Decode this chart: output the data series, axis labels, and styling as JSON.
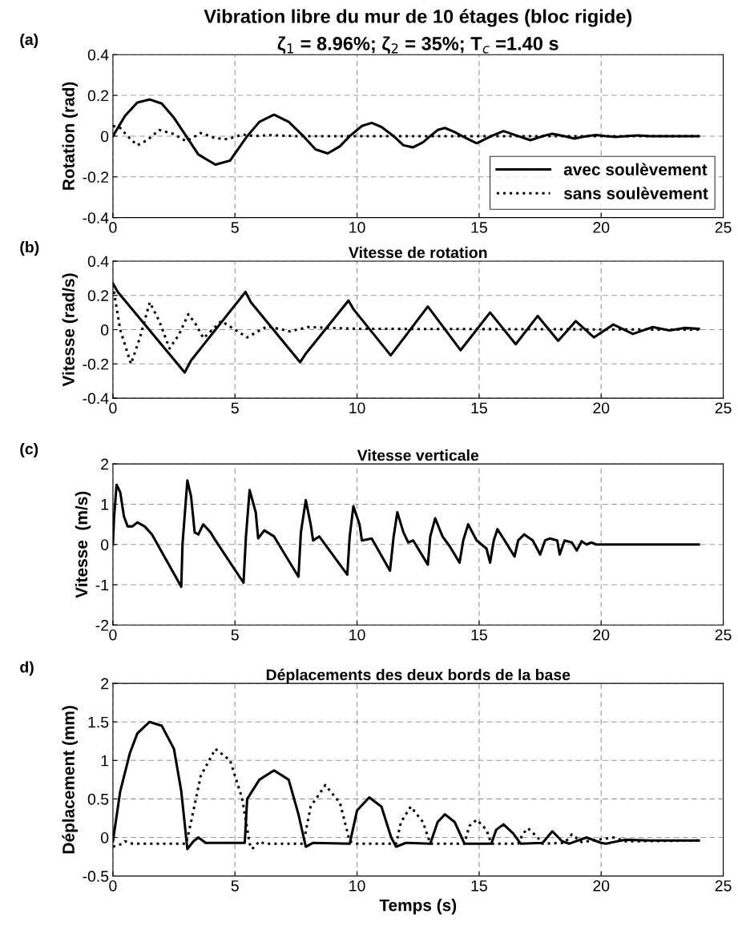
{
  "chart_data": [
    {
      "type": "line",
      "title": "Vibration libre du mur de 10 étages (bloc rigide)",
      "subtitle": "ζ$_{1}$ = 8.96%; ζ$_{2}$ = 35%; T$_{c}$ =1.40 s",
      "ylabel": "Rotation (rad)",
      "annotations": [
        "(a)"
      ],
      "xlim": [
        0,
        25
      ],
      "xticks": [
        0,
        5,
        10,
        15,
        20,
        25
      ],
      "ylim": [
        -0.4,
        0.4
      ],
      "yticks": [
        -0.4,
        -0.2,
        0,
        0.2,
        0.4
      ],
      "grid": true,
      "legend": "bottom right",
      "series": [
        {
          "name": "avec soulèvement",
          "color": "#000000",
          "line_style": "solid",
          "x": [
            0,
            0.5,
            1.0,
            1.5,
            2.0,
            2.5,
            3.0,
            3.5,
            4.2,
            4.8,
            5.5,
            6.0,
            6.6,
            7.2,
            7.8,
            8.3,
            8.8,
            9.3,
            9.7,
            10.2,
            10.6,
            11.0,
            11.5,
            11.9,
            12.3,
            12.7,
            13.0,
            13.3,
            13.6,
            14.0,
            14.3,
            14.9,
            15.5,
            16.0,
            16.6,
            17.1,
            17.6,
            18.0,
            18.5,
            18.9,
            19.4,
            19.8,
            20.2,
            20.6,
            21.0,
            21.5,
            22,
            24
          ],
          "values": [
            0,
            0.1,
            0.165,
            0.18,
            0.16,
            0.09,
            0,
            -0.09,
            -0.14,
            -0.12,
            0,
            0.07,
            0.105,
            0.07,
            0,
            -0.065,
            -0.085,
            -0.05,
            0,
            0.05,
            0.065,
            0.045,
            0,
            -0.045,
            -0.055,
            -0.03,
            0,
            0.03,
            0.04,
            0.02,
            0,
            -0.035,
            0,
            0.025,
            0,
            -0.02,
            0,
            0.012,
            0,
            -0.012,
            0,
            0.006,
            0,
            -0.004,
            0,
            0.004,
            0,
            0
          ]
        },
        {
          "name": "sans soulèvement",
          "color": "#000000",
          "line_style": "dotted",
          "x": [
            0,
            0.3,
            0.6,
            1.0,
            1.4,
            1.9,
            2.5,
            3.0,
            3.6,
            4.2,
            4.7,
            5.3,
            5.8,
            6.4,
            7.5,
            10,
            24
          ],
          "values": [
            0.05,
            0.04,
            0,
            -0.045,
            -0.02,
            0.03,
            0.01,
            -0.025,
            0.015,
            -0.01,
            -0.015,
            0.008,
            0,
            0.005,
            0,
            0,
            0
          ]
        }
      ]
    },
    {
      "type": "line",
      "title": "Vitesse de rotation",
      "ylabel": "Vitesse (rad/s)",
      "annotations": [
        "(b)"
      ],
      "xlim": [
        0,
        25
      ],
      "xticks": [
        0,
        5,
        10,
        15,
        20,
        25
      ],
      "ylim": [
        -0.4,
        0.4
      ],
      "yticks": [
        -0.4,
        -0.2,
        0,
        0.2,
        0.4
      ],
      "grid": true,
      "series": [
        {
          "color": "#000000",
          "line_style": "solid",
          "x": [
            0,
            0.2,
            2.94,
            3.2,
            5.43,
            5.65,
            7.67,
            7.9,
            9.65,
            9.85,
            11.38,
            12.9,
            14.24,
            15.45,
            16.5,
            17.4,
            18.24,
            18.96,
            19.7,
            20.5,
            21.3,
            22.1,
            22.8,
            23.4,
            24
          ],
          "values": [
            0.27,
            0.22,
            -0.25,
            -0.18,
            0.22,
            0.16,
            -0.19,
            -0.14,
            0.17,
            0.12,
            -0.15,
            0.135,
            -0.12,
            0.1,
            -0.085,
            0.08,
            -0.065,
            0.05,
            -0.045,
            0.03,
            -0.025,
            0.015,
            -0.005,
            0.01,
            0.005
          ]
        },
        {
          "color": "#000000",
          "line_style": "dotted",
          "x": [
            0,
            0.3,
            0.74,
            1.1,
            1.51,
            1.9,
            2.32,
            2.7,
            3.09,
            3.4,
            3.71,
            4.44,
            5.5,
            6.33,
            7.25,
            8.0,
            10,
            24
          ],
          "values": [
            0.26,
            0.0,
            -0.2,
            -0.05,
            0.16,
            0.05,
            -0.11,
            -0.03,
            0.09,
            0.03,
            -0.05,
            0.05,
            -0.045,
            0.02,
            -0.01,
            0.015,
            0.005,
            0
          ]
        }
      ]
    },
    {
      "type": "line",
      "title": "Vitesse verticale",
      "ylabel": "Vitesse  (m/s)",
      "annotations": [
        "(c)"
      ],
      "xlim": [
        0,
        25
      ],
      "xticks": [
        0,
        5,
        10,
        15,
        20,
        25
      ],
      "ylim": [
        -2,
        2
      ],
      "yticks": [
        -2,
        -1,
        0,
        1,
        2
      ],
      "grid": true,
      "series": [
        {
          "color": "#000000",
          "line_style": "solid",
          "x": [
            0,
            0.05,
            0.15,
            0.3,
            0.45,
            0.6,
            0.8,
            1.0,
            1.3,
            1.6,
            2.8,
            2.85,
            3.05,
            3.2,
            3.35,
            3.5,
            3.7,
            4.0,
            4.2,
            5.35,
            5.45,
            5.6,
            5.85,
            5.95,
            6.2,
            6.6,
            7.6,
            7.7,
            7.9,
            8.1,
            8.2,
            8.45,
            9.6,
            9.7,
            9.85,
            10.1,
            10.2,
            10.6,
            11.35,
            11.5,
            11.65,
            11.9,
            12.1,
            12.3,
            12.9,
            13.0,
            13.2,
            13.5,
            13.8,
            14.2,
            14.35,
            14.55,
            14.9,
            15.3,
            15.45,
            15.6,
            15.75,
            16.1,
            16.45,
            16.6,
            16.85,
            17.2,
            17.5,
            17.7,
            17.9,
            18.2,
            18.3,
            18.5,
            18.8,
            19.0,
            19.2,
            19.4,
            19.6,
            19.8,
            24
          ],
          "values": [
            0,
            0.7,
            1.48,
            1.3,
            0.7,
            0.45,
            0.45,
            0.55,
            0.45,
            0.25,
            -1.05,
            0,
            1.59,
            1.2,
            0.3,
            0.25,
            0.5,
            0.3,
            0.1,
            -0.95,
            0.2,
            1.35,
            0.8,
            0.15,
            0.35,
            0.2,
            -0.8,
            0.3,
            1.1,
            0.5,
            0.1,
            0.2,
            -0.75,
            0.2,
            0.95,
            0.5,
            0.1,
            0.15,
            -0.65,
            0.2,
            0.8,
            0.3,
            0.05,
            0.1,
            -0.5,
            0.2,
            0.65,
            0.2,
            -0.05,
            -0.45,
            0.1,
            0.5,
            0.1,
            -0.1,
            -0.45,
            0.1,
            0.38,
            0.05,
            -0.3,
            0.1,
            0.25,
            0.1,
            -0.25,
            0.1,
            0.15,
            0.1,
            -0.25,
            0.1,
            0.05,
            -0.15,
            0.08,
            0,
            0.05,
            0,
            0
          ]
        }
      ]
    },
    {
      "type": "line",
      "title": "Déplacements des deux bords de la base",
      "xlabel": "Temps (s)",
      "ylabel": "Déplacement (mm)",
      "annotations": [
        "d)"
      ],
      "xlim": [
        0,
        25
      ],
      "xticks": [
        0,
        5,
        10,
        15,
        20,
        25
      ],
      "ylim": [
        -0.5,
        2
      ],
      "yticks": [
        -0.5,
        0,
        0.5,
        1,
        1.5,
        2
      ],
      "grid": true,
      "series": [
        {
          "color": "#000000",
          "line_style": "solid",
          "x": [
            0,
            0.3,
            0.7,
            1.0,
            1.5,
            2.0,
            2.5,
            2.8,
            3.05,
            3.3,
            3.5,
            3.8,
            5.4,
            5.5,
            6.0,
            6.6,
            7.2,
            7.6,
            7.9,
            8.2,
            9.7,
            10.0,
            10.5,
            11.0,
            11.4,
            11.6,
            12.0,
            13.0,
            13.3,
            13.6,
            14.0,
            14.4,
            15.5,
            15.7,
            16.0,
            16.4,
            16.7,
            17.6,
            18.0,
            18.4,
            18.7,
            19.4,
            20.0,
            20.2,
            21.0,
            22,
            24
          ],
          "values": [
            -0.05,
            0.6,
            1.1,
            1.35,
            1.5,
            1.45,
            1.15,
            0.6,
            -0.15,
            -0.05,
            0,
            -0.07,
            -0.07,
            0.5,
            0.75,
            0.87,
            0.75,
            0.3,
            -0.12,
            -0.07,
            -0.08,
            0.35,
            0.52,
            0.4,
            0,
            -0.12,
            -0.07,
            -0.08,
            0.2,
            0.3,
            0.2,
            -0.08,
            -0.08,
            0.1,
            0.17,
            0.05,
            -0.08,
            -0.07,
            0.08,
            -0.05,
            -0.08,
            0.0,
            -0.07,
            -0.08,
            -0.03,
            -0.04,
            -0.04
          ]
        },
        {
          "color": "#000000",
          "line_style": "dotted",
          "x": [
            0,
            0.4,
            0.5,
            0.8,
            3.0,
            3.2,
            3.6,
            4.2,
            4.8,
            5.3,
            5.6,
            5.7,
            6.0,
            6.2,
            7.8,
            8.1,
            8.7,
            9.3,
            9.7,
            10,
            11.6,
            11.8,
            12.2,
            12.7,
            13.0,
            14.4,
            14.6,
            14.9,
            15.3,
            15.5,
            16.6,
            16.8,
            17.0,
            17.4,
            17.6,
            18.5,
            18.8,
            19.2,
            20.5,
            21.0,
            24
          ],
          "values": [
            -0.12,
            -0.08,
            -0.05,
            -0.08,
            -0.08,
            0.2,
            0.8,
            1.15,
            1.0,
            0.5,
            -0.08,
            -0.15,
            -0.05,
            -0.08,
            -0.08,
            0.4,
            0.68,
            0.45,
            -0.05,
            -0.08,
            -0.08,
            0.2,
            0.4,
            0.2,
            -0.08,
            -0.08,
            0.15,
            0.23,
            0.1,
            -0.08,
            -0.08,
            0.05,
            0.12,
            0.0,
            -0.08,
            -0.07,
            0.04,
            -0.06,
            0.0,
            -0.05,
            -0.04
          ]
        }
      ]
    }
  ]
}
